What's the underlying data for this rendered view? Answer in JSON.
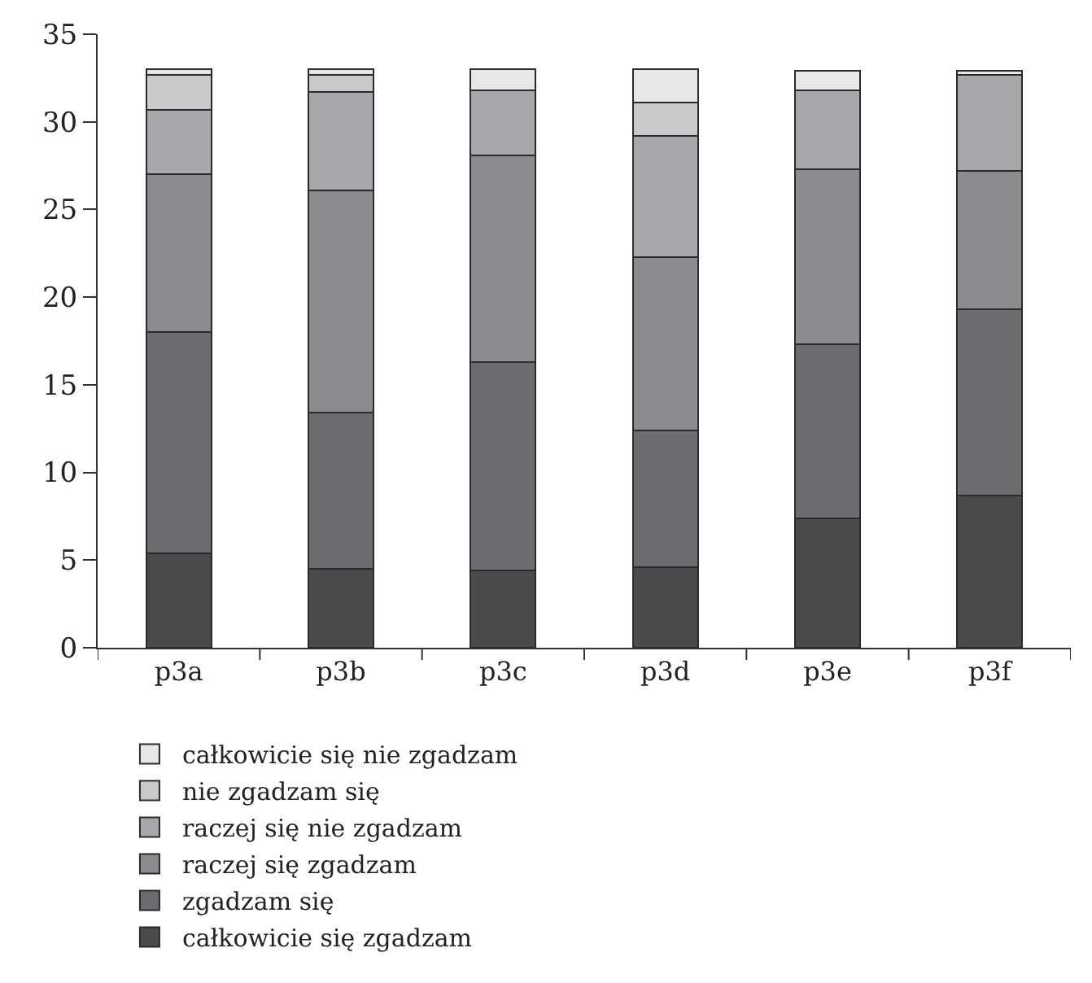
{
  "chart_data": {
    "type": "bar",
    "stacked": true,
    "categories": [
      "p3a",
      "p3b",
      "p3c",
      "p3d",
      "p3e",
      "p3f"
    ],
    "series": [
      {
        "name": "całkowicie się zgadzam",
        "color": "#4a4b4d",
        "values": [
          5.4,
          4.5,
          4.4,
          4.6,
          7.4,
          8.7
        ]
      },
      {
        "name": "zgadzam się",
        "color": "#6b6c70",
        "values": [
          12.6,
          8.9,
          11.9,
          7.8,
          9.9,
          10.6
        ]
      },
      {
        "name": "raczej się zgadzam",
        "color": "#8b8c8f",
        "values": [
          9.0,
          12.7,
          11.8,
          9.9,
          10.0,
          7.9
        ]
      },
      {
        "name": "raczej się nie zgadzam",
        "color": "#a7a8ab",
        "values": [
          3.7,
          5.6,
          3.7,
          6.9,
          4.5,
          5.5
        ]
      },
      {
        "name": "nie zgadzam się",
        "color": "#c8c9cb",
        "values": [
          2.0,
          1.0,
          0,
          1.9,
          0,
          0
        ]
      },
      {
        "name": "całkowicie się nie zgadzam",
        "color": "#e6e7e8",
        "values": [
          0.3,
          0.3,
          1.2,
          1.9,
          1.1,
          0.2
        ]
      }
    ],
    "ylim": [
      0,
      35
    ],
    "yticks": [
      0,
      5,
      10,
      15,
      20,
      25,
      30,
      35
    ],
    "legend": "bottom"
  }
}
